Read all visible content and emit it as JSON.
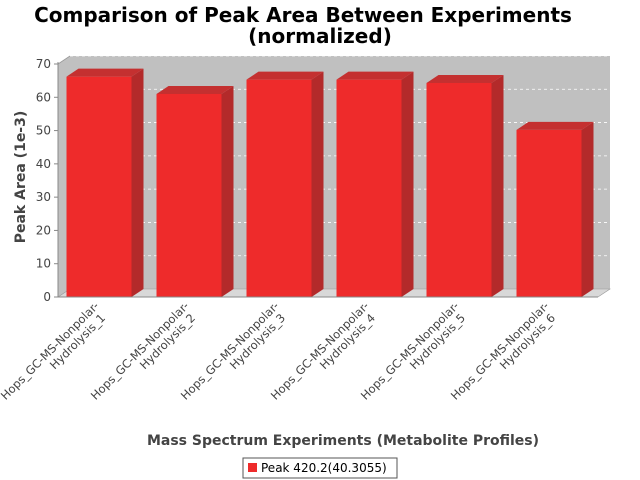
{
  "chart_data": {
    "type": "bar",
    "title_lines": [
      "Comparison of Peak Area Between Experiments",
      "(normalized)"
    ],
    "xlabel": "Mass Spectrum Experiments (Metabolite Profiles)",
    "ylabel": "Peak Area (1e-3)",
    "ylim": [
      0,
      70
    ],
    "yticks": [
      0,
      10,
      20,
      30,
      40,
      50,
      60,
      70
    ],
    "grid": true,
    "legend_position": "bottom",
    "categories": [
      [
        "Hops_GC-MS-Nonpolar-",
        "Hydrolysis_1"
      ],
      [
        "Hops_GC-MS-Nonpolar-",
        "Hydrolysis_2"
      ],
      [
        "Hops_GC-MS-Nonpolar-",
        "Hydrolysis_3"
      ],
      [
        "Hops_GC-MS-Nonpolar-",
        "Hydrolysis_4"
      ],
      [
        "Hops_GC-MS-Nonpolar-",
        "Hydrolysis_5"
      ],
      [
        "Hops_GC-MS-Nonpolar-",
        "Hydrolysis_6"
      ]
    ],
    "series": [
      {
        "name": "Peak 420.2(40.3055)",
        "color": "#ee2b2b",
        "values": [
          66.2,
          61.0,
          65.3,
          65.3,
          64.3,
          50.2
        ]
      }
    ]
  }
}
